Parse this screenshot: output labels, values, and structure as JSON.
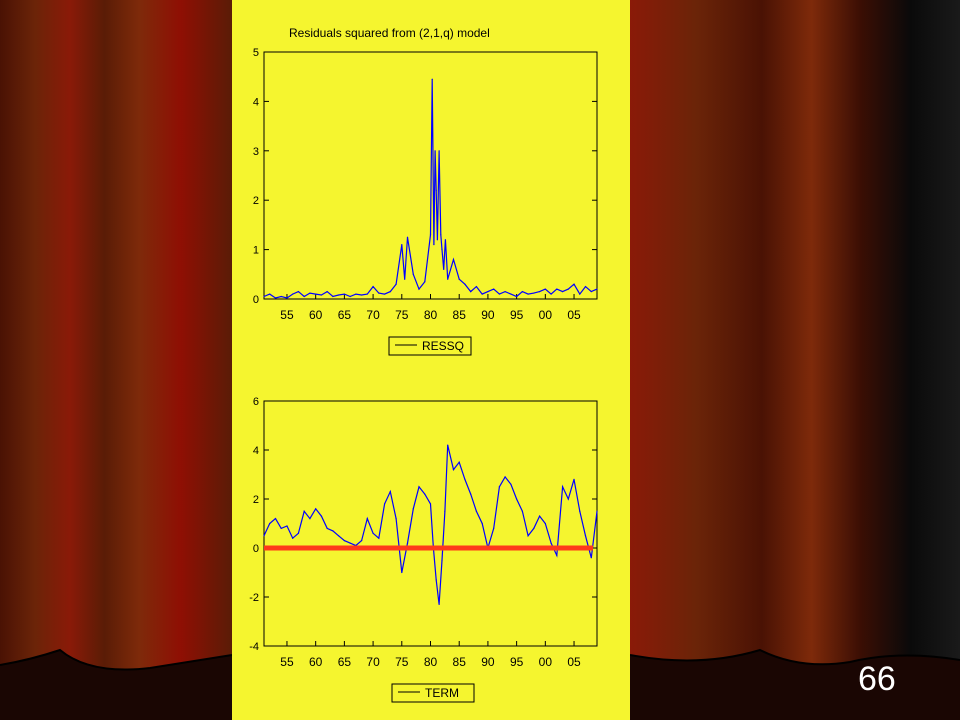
{
  "slide": {
    "number": "66"
  },
  "colors": {
    "panel": "#f5f52f",
    "series": "#0000ff",
    "zero_line": "#ff3a1a",
    "curtain": "#7a1a06"
  },
  "chart_data": [
    {
      "type": "line",
      "title": "Residuals squared from (2,1,q) model",
      "xlabel": "",
      "ylabel": "",
      "xlim": [
        1951,
        2009
      ],
      "ylim": [
        0,
        5
      ],
      "yticks": [
        0,
        1,
        2,
        3,
        4,
        5
      ],
      "xticks": [
        1955,
        1960,
        1965,
        1970,
        1975,
        1980,
        1985,
        1990,
        1995,
        2000,
        2005
      ],
      "xtick_labels": [
        "55",
        "60",
        "65",
        "70",
        "75",
        "80",
        "85",
        "90",
        "95",
        "00",
        "05"
      ],
      "grid": false,
      "legend": "bottom-center",
      "series": [
        {
          "name": "RESSQ",
          "x": [
            1951,
            1952,
            1953,
            1954,
            1955,
            1956,
            1957,
            1958,
            1959,
            1960,
            1961,
            1962,
            1963,
            1964,
            1965,
            1966,
            1967,
            1968,
            1969,
            1970,
            1971,
            1972,
            1973,
            1974,
            1975,
            1975.5,
            1976,
            1977,
            1978,
            1979,
            1980,
            1980.3,
            1980.6,
            1980.8,
            1981,
            1981.2,
            1981.5,
            1981.8,
            1982,
            1982.3,
            1982.6,
            1983,
            1984,
            1985,
            1986,
            1987,
            1988,
            1989,
            1990,
            1991,
            1992,
            1993,
            1994,
            1995,
            1996,
            1997,
            1998,
            1999,
            2000,
            2001,
            2002,
            2003,
            2004,
            2005,
            2006,
            2007,
            2008,
            2009
          ],
          "values": [
            0.05,
            0.1,
            0.02,
            0.05,
            0.02,
            0.1,
            0.15,
            0.05,
            0.12,
            0.1,
            0.08,
            0.15,
            0.05,
            0.08,
            0.1,
            0.05,
            0.1,
            0.08,
            0.1,
            0.25,
            0.12,
            0.1,
            0.15,
            0.3,
            1.1,
            0.4,
            1.25,
            0.5,
            0.2,
            0.35,
            1.3,
            4.45,
            1.1,
            3.0,
            2.2,
            1.2,
            3.0,
            1.3,
            1.0,
            0.6,
            1.2,
            0.4,
            0.8,
            0.4,
            0.3,
            0.15,
            0.25,
            0.1,
            0.15,
            0.2,
            0.1,
            0.15,
            0.1,
            0.05,
            0.15,
            0.1,
            0.12,
            0.15,
            0.2,
            0.1,
            0.2,
            0.15,
            0.2,
            0.3,
            0.1,
            0.25,
            0.15,
            0.2
          ]
        }
      ]
    },
    {
      "type": "line",
      "title": "",
      "xlabel": "",
      "ylabel": "",
      "xlim": [
        1951,
        2009
      ],
      "ylim": [
        -4,
        6
      ],
      "yticks": [
        -4,
        -2,
        0,
        2,
        4,
        6
      ],
      "xticks": [
        1955,
        1960,
        1965,
        1970,
        1975,
        1980,
        1985,
        1990,
        1995,
        2000,
        2005
      ],
      "xtick_labels": [
        "55",
        "60",
        "65",
        "70",
        "75",
        "80",
        "85",
        "90",
        "95",
        "00",
        "05"
      ],
      "grid": false,
      "legend": "bottom-center",
      "hline": 0,
      "series": [
        {
          "name": "TERM",
          "x": [
            1951,
            1952,
            1953,
            1954,
            1955,
            1956,
            1957,
            1958,
            1959,
            1960,
            1961,
            1962,
            1963,
            1964,
            1965,
            1966,
            1967,
            1968,
            1969,
            1970,
            1971,
            1972,
            1973,
            1974,
            1975,
            1976,
            1977,
            1978,
            1979,
            1980,
            1980.5,
            1981,
            1981.5,
            1982,
            1982.5,
            1983,
            1984,
            1985,
            1986,
            1987,
            1988,
            1989,
            1990,
            1991,
            1992,
            1993,
            1994,
            1995,
            1996,
            1997,
            1998,
            1999,
            2000,
            2001,
            2002,
            2003,
            2004,
            2005,
            2006,
            2007,
            2008,
            2009
          ],
          "values": [
            0.5,
            1.0,
            1.2,
            0.8,
            0.9,
            0.4,
            0.6,
            1.5,
            1.2,
            1.6,
            1.3,
            0.8,
            0.7,
            0.5,
            0.3,
            0.2,
            0.1,
            0.3,
            1.2,
            0.6,
            0.4,
            1.8,
            2.3,
            1.2,
            -1.0,
            0.2,
            1.6,
            2.5,
            2.2,
            1.8,
            0.0,
            -1.3,
            -2.3,
            -0.5,
            1.5,
            4.2,
            3.2,
            3.5,
            2.8,
            2.2,
            1.5,
            1.0,
            0.0,
            0.8,
            2.5,
            2.9,
            2.6,
            2.0,
            1.5,
            0.5,
            0.8,
            1.3,
            1.0,
            0.2,
            -0.3,
            2.5,
            2.0,
            2.8,
            1.5,
            0.5,
            -0.4,
            1.5
          ]
        }
      ]
    }
  ],
  "legends": [
    "RESSQ",
    "TERM"
  ]
}
